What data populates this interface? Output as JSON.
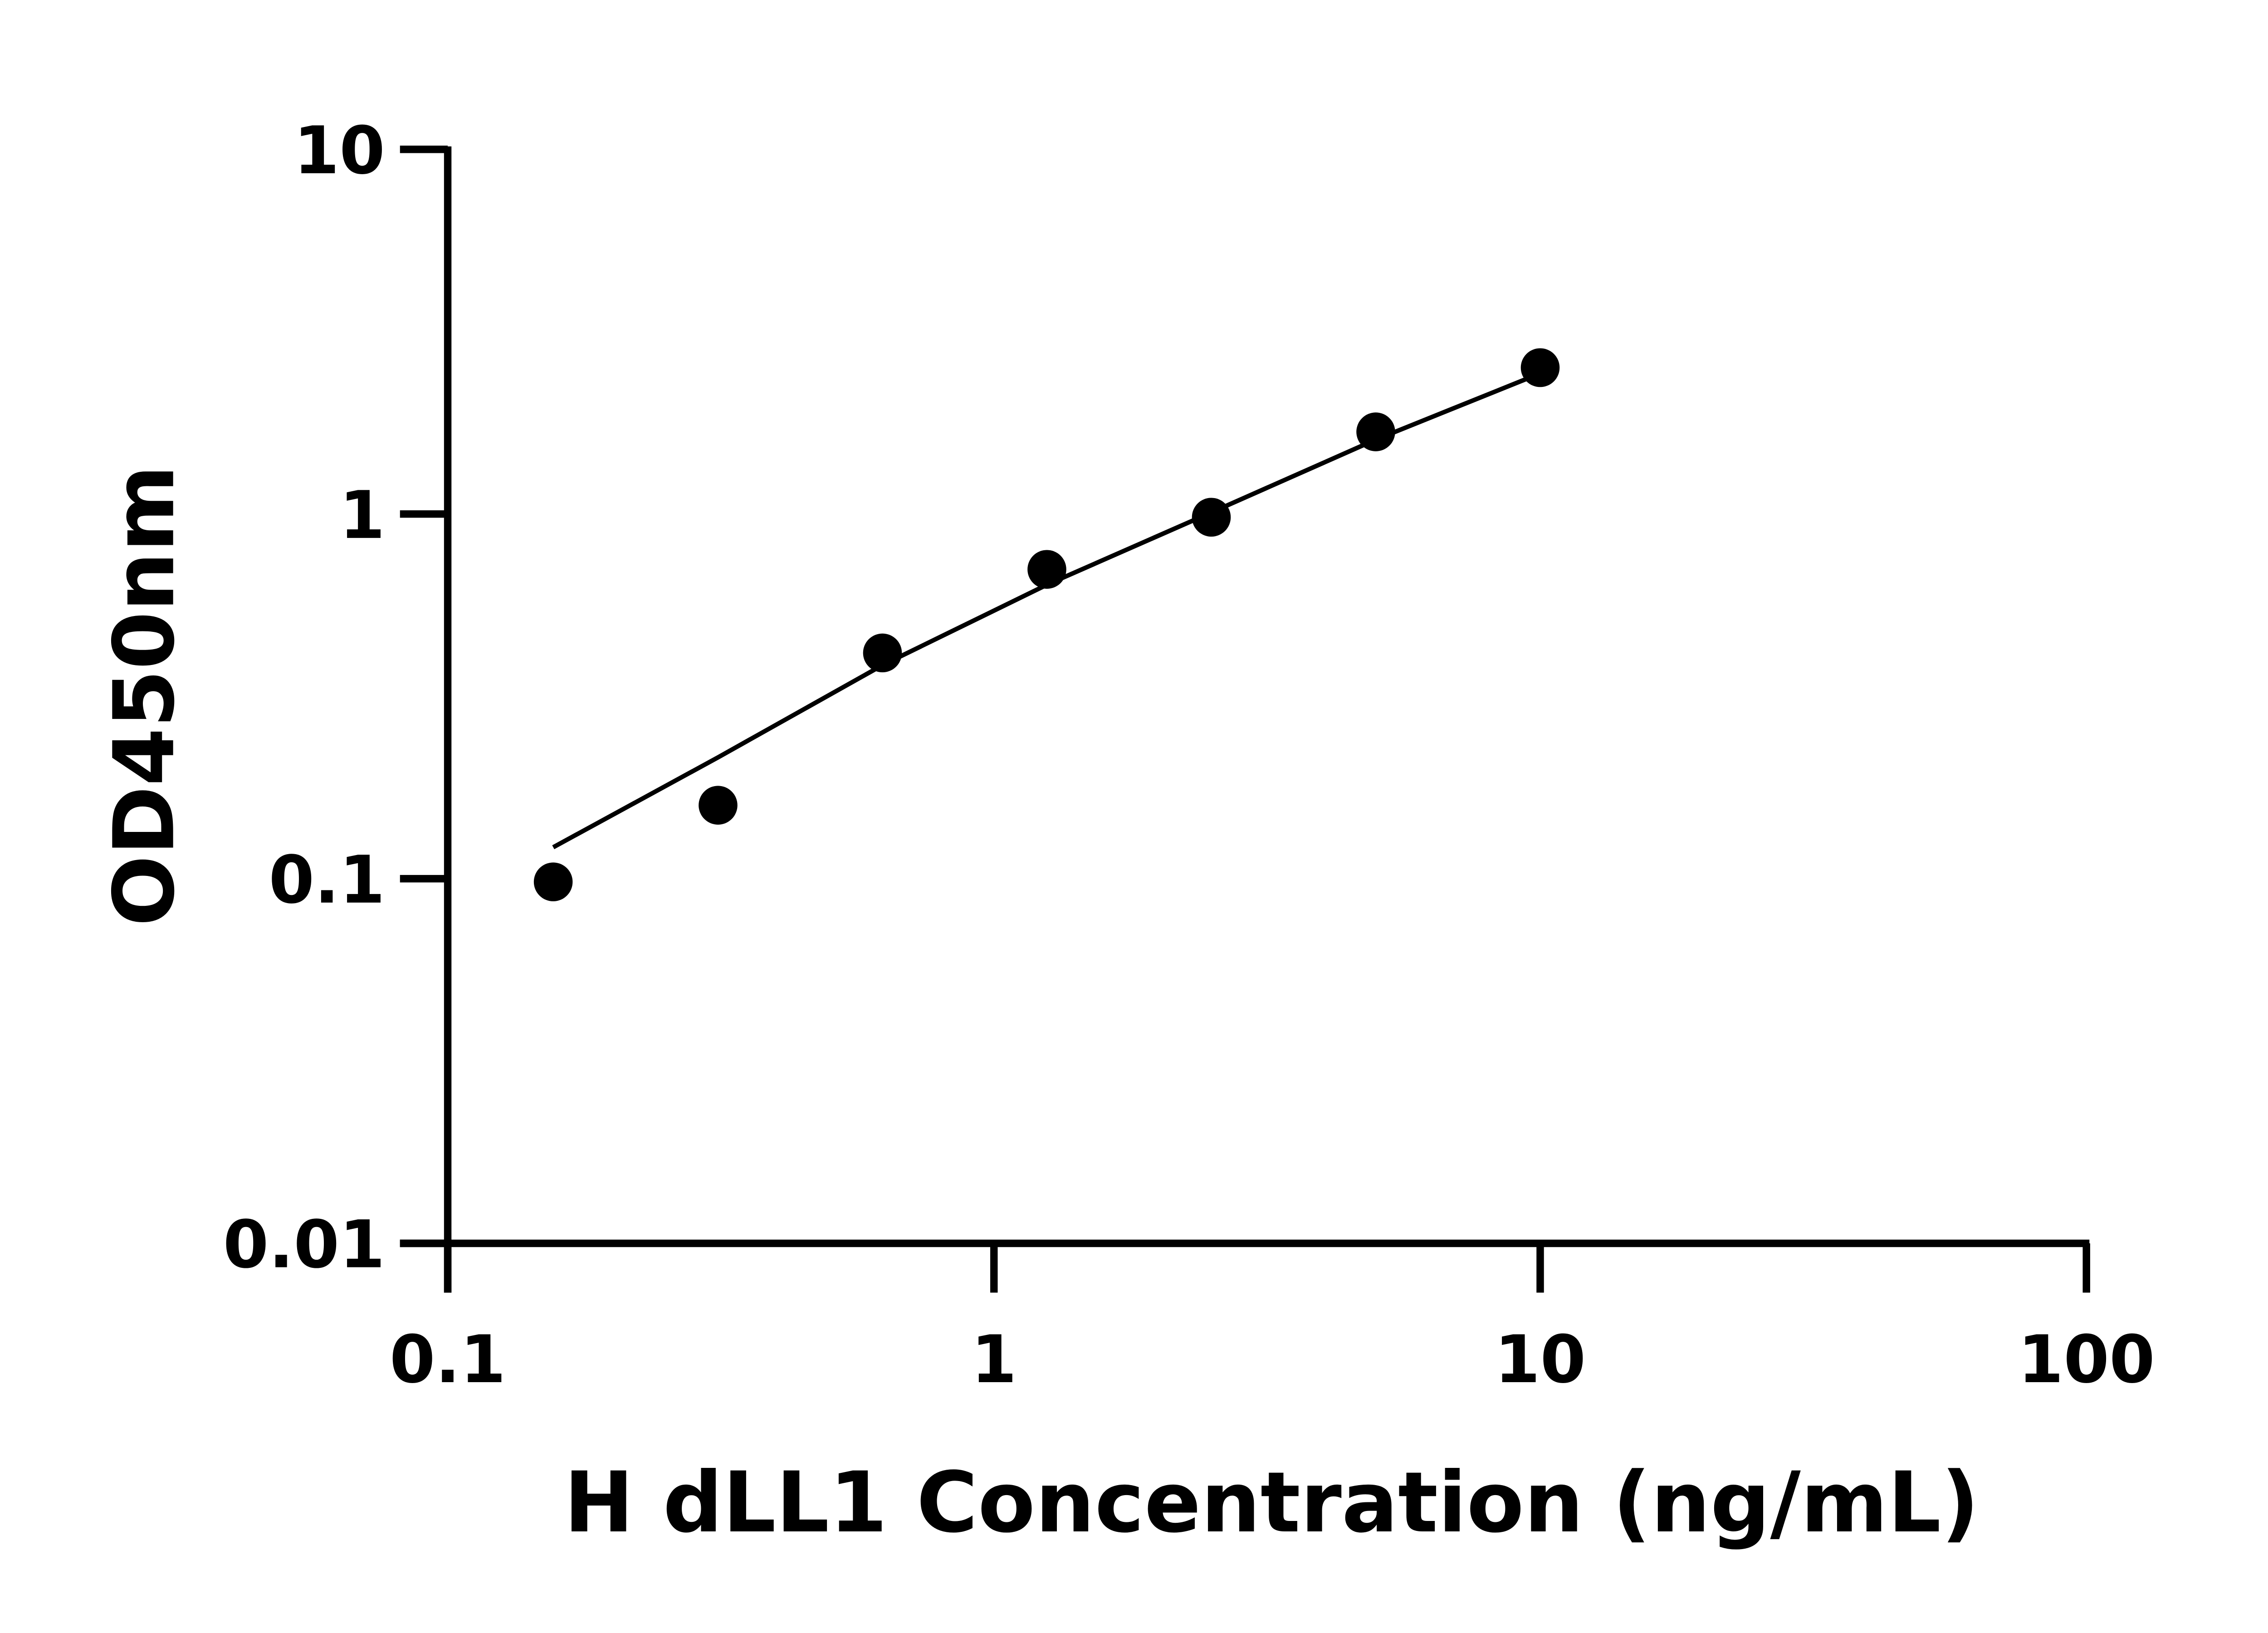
{
  "chart_data": {
    "type": "scatter",
    "title": "",
    "xlabel": "H dLL1 Concentration (ng/mL)",
    "ylabel": "OD450nm",
    "x_scale": "log",
    "y_scale": "log",
    "xlim": [
      0.1,
      100
    ],
    "ylim": [
      0.01,
      10
    ],
    "x_ticks": [
      "0.1",
      "1",
      "10",
      "100"
    ],
    "y_ticks": [
      "0.01",
      "0.1",
      "1",
      "10"
    ],
    "grid": false,
    "legend": "none",
    "series": [
      {
        "points": [
          {
            "x": 0.156,
            "y": 0.098
          },
          {
            "x": 0.3125,
            "y": 0.159
          },
          {
            "x": 0.625,
            "y": 0.416
          },
          {
            "x": 1.25,
            "y": 0.705
          },
          {
            "x": 2.5,
            "y": 0.98
          },
          {
            "x": 5,
            "y": 1.68
          },
          {
            "x": 10,
            "y": 2.52
          }
        ],
        "fit_curve": [
          {
            "x": 0.156,
            "y": 0.122
          },
          {
            "x": 0.3125,
            "y": 0.215
          },
          {
            "x": 0.625,
            "y": 0.385
          },
          {
            "x": 1.25,
            "y": 0.64
          },
          {
            "x": 2.5,
            "y": 1.01
          },
          {
            "x": 5,
            "y": 1.6
          },
          {
            "x": 10,
            "y": 2.43
          }
        ]
      }
    ],
    "colors": {
      "marker": "#000000",
      "line": "#000000",
      "axis": "#000000"
    }
  }
}
